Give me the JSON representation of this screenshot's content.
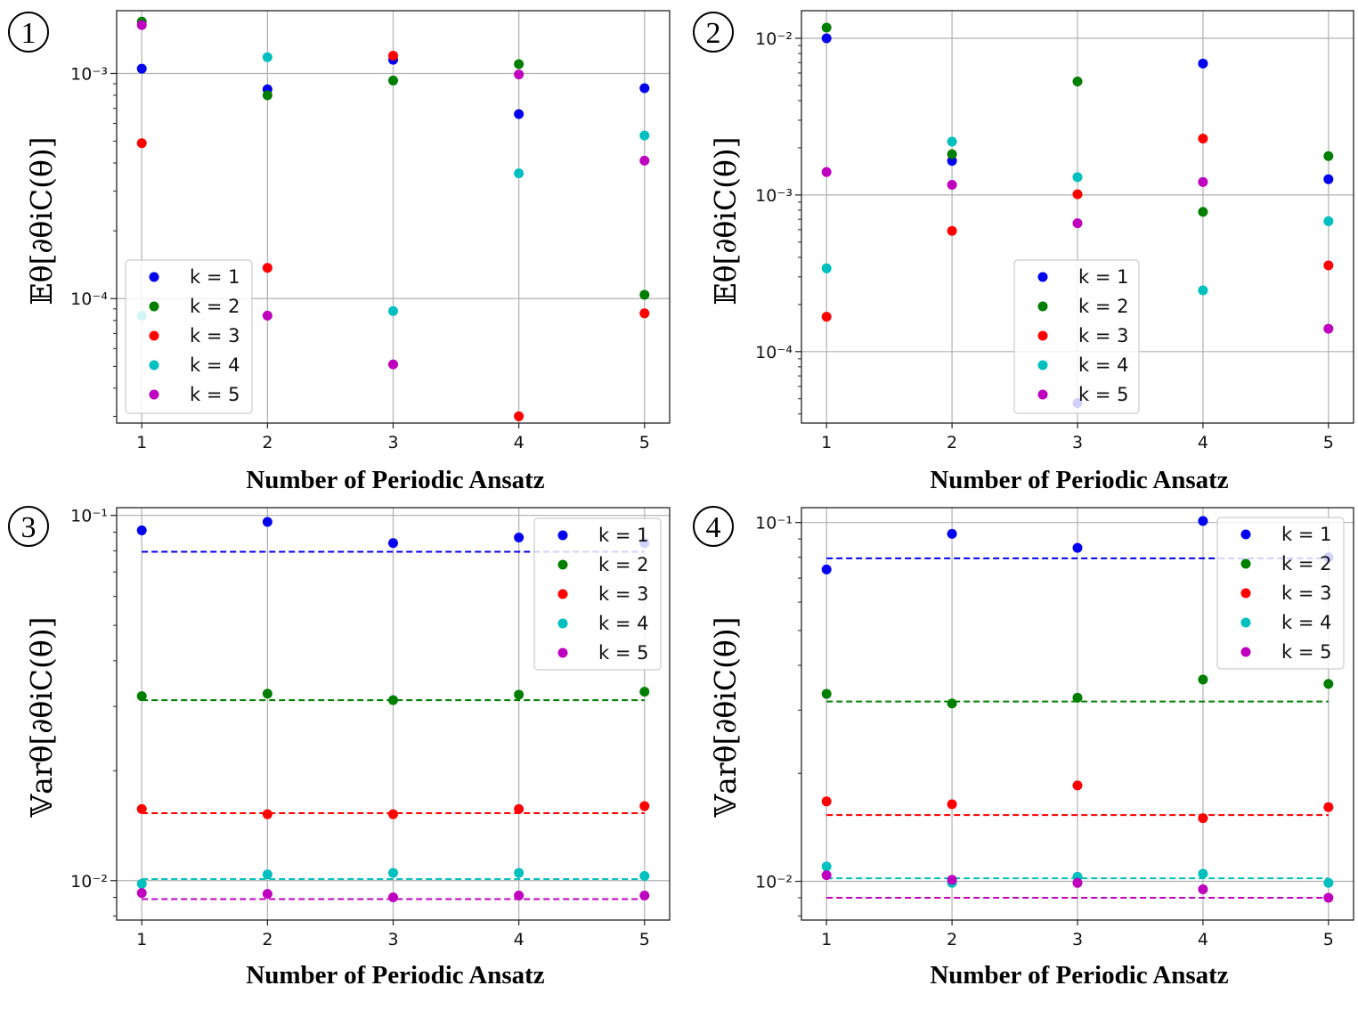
{
  "chart_data": [
    {
      "type": "scatter",
      "panel_label": "1",
      "xlabel": "Number of Periodic Ansatz",
      "ylabel": "𝔼θ[∂θiC(θ)]",
      "yscale": "log",
      "ylim": [
        2.8e-05,
        0.0019
      ],
      "xlim": [
        0.8,
        5.2
      ],
      "x": [
        1,
        2,
        3,
        4,
        5
      ],
      "xticks": [
        "1",
        "2",
        "3",
        "4",
        "5"
      ],
      "yticks": [
        {
          "value": 0.0001,
          "label": "10⁻⁴"
        },
        {
          "value": 0.001,
          "label": "10⁻³"
        }
      ],
      "grid": true,
      "legend_position": "lower-left",
      "series": [
        {
          "name": "k = 1",
          "color": "#0000ee",
          "values": [
            0.00105,
            0.00085,
            0.00115,
            0.00066,
            0.00086
          ],
          "baseline": null
        },
        {
          "name": "k = 2",
          "color": "#007f00",
          "values": [
            0.0017,
            0.0008,
            0.00093,
            0.0011,
            0.000104
          ],
          "baseline": null
        },
        {
          "name": "k = 3",
          "color": "#ff0000",
          "values": [
            0.00049,
            0.000137,
            0.0012,
            3e-05,
            8.6e-05
          ],
          "baseline": null
        },
        {
          "name": "k = 4",
          "color": "#00bfbf",
          "values": [
            8.4e-05,
            0.00118,
            8.8e-05,
            0.00036,
            0.00053
          ],
          "baseline": null
        },
        {
          "name": "k = 5",
          "color": "#bf00bf",
          "values": [
            0.00164,
            8.4e-05,
            5.1e-05,
            0.00099,
            0.00041
          ],
          "baseline": null
        }
      ]
    },
    {
      "type": "scatter",
      "panel_label": "2",
      "xlabel": "Number of Periodic Ansatz",
      "ylabel": "𝔼θ[∂θiC(θ)]",
      "yscale": "log",
      "ylim": [
        3.5e-05,
        0.015
      ],
      "xlim": [
        0.8,
        5.2
      ],
      "x": [
        1,
        2,
        3,
        4,
        5
      ],
      "xticks": [
        "1",
        "2",
        "3",
        "4",
        "5"
      ],
      "yticks": [
        {
          "value": 0.0001,
          "label": "10⁻⁴"
        },
        {
          "value": 0.001,
          "label": "10⁻³"
        },
        {
          "value": 0.01,
          "label": "10⁻²"
        }
      ],
      "grid": true,
      "legend_position": "lower-center",
      "series": [
        {
          "name": "k = 1",
          "color": "#0000ee",
          "values": [
            0.01,
            0.00165,
            4.7e-05,
            0.0069,
            0.00126
          ],
          "baseline": null
        },
        {
          "name": "k = 2",
          "color": "#007f00",
          "values": [
            0.0117,
            0.00182,
            0.0053,
            0.00078,
            0.00177
          ],
          "baseline": null
        },
        {
          "name": "k = 3",
          "color": "#ff0000",
          "values": [
            0.000167,
            0.00059,
            0.00101,
            0.00229,
            0.000355
          ],
          "baseline": null
        },
        {
          "name": "k = 4",
          "color": "#00bfbf",
          "values": [
            0.00034,
            0.00219,
            0.0013,
            0.000246,
            0.00068
          ],
          "baseline": null
        },
        {
          "name": "k = 5",
          "color": "#bf00bf",
          "values": [
            0.0014,
            0.00116,
            0.00066,
            0.00121,
            0.00014
          ],
          "baseline": null
        }
      ]
    },
    {
      "type": "scatter",
      "panel_label": "3",
      "xlabel": "Number of Periodic Ansatz",
      "ylabel": "𝕍arθ[∂θiC(θ)]",
      "yscale": "log",
      "ylim": [
        0.0078,
        0.105
      ],
      "xlim": [
        0.8,
        5.2
      ],
      "x": [
        1,
        2,
        3,
        4,
        5
      ],
      "xticks": [
        "1",
        "2",
        "3",
        "4",
        "5"
      ],
      "yticks": [
        {
          "value": 0.01,
          "label": "10⁻²"
        },
        {
          "value": 0.1,
          "label": "10⁻¹"
        }
      ],
      "grid": true,
      "legend_position": "upper-right",
      "series": [
        {
          "name": "k = 1",
          "color": "#0000ee",
          "values": [
            0.091,
            0.096,
            0.084,
            0.087,
            0.084
          ],
          "baseline": 0.0795
        },
        {
          "name": "k = 2",
          "color": "#007f00",
          "values": [
            0.032,
            0.0325,
            0.0312,
            0.0323,
            0.0329
          ],
          "baseline": 0.0312
        },
        {
          "name": "k = 3",
          "color": "#ff0000",
          "values": [
            0.0157,
            0.0152,
            0.0152,
            0.0157,
            0.016
          ],
          "baseline": 0.0153
        },
        {
          "name": "k = 4",
          "color": "#00bfbf",
          "values": [
            0.0098,
            0.0104,
            0.0105,
            0.0105,
            0.0103
          ],
          "baseline": 0.0101
        },
        {
          "name": "k = 5",
          "color": "#bf00bf",
          "values": [
            0.00925,
            0.0092,
            0.009,
            0.0091,
            0.0091
          ],
          "baseline": 0.0089
        }
      ]
    },
    {
      "type": "scatter",
      "panel_label": "4",
      "xlabel": "Number of Periodic Ansatz",
      "ylabel": "𝕍arθ[∂θiC(θ)]",
      "yscale": "log",
      "ylim": [
        0.0078,
        0.11
      ],
      "xlim": [
        0.8,
        5.2
      ],
      "x": [
        1,
        2,
        3,
        4,
        5
      ],
      "xticks": [
        "1",
        "2",
        "3",
        "4",
        "5"
      ],
      "yticks": [
        {
          "value": 0.01,
          "label": "10⁻²"
        },
        {
          "value": 0.1,
          "label": "10⁻¹"
        }
      ],
      "grid": true,
      "legend_position": "upper-right",
      "series": [
        {
          "name": "k = 1",
          "color": "#0000ee",
          "values": [
            0.074,
            0.093,
            0.085,
            0.101,
            0.08
          ],
          "baseline": 0.0795
        },
        {
          "name": "k = 2",
          "color": "#007f00",
          "values": [
            0.0333,
            0.0313,
            0.0325,
            0.0365,
            0.0355
          ],
          "baseline": 0.0317
        },
        {
          "name": "k = 3",
          "color": "#ff0000",
          "values": [
            0.0167,
            0.0164,
            0.0185,
            0.015,
            0.0161
          ],
          "baseline": 0.0153
        },
        {
          "name": "k = 4",
          "color": "#00bfbf",
          "values": [
            0.011,
            0.0099,
            0.0103,
            0.0105,
            0.0099
          ],
          "baseline": 0.0102
        },
        {
          "name": "k = 5",
          "color": "#bf00bf",
          "values": [
            0.0104,
            0.0101,
            0.0099,
            0.0095,
            0.009
          ],
          "baseline": 0.009
        }
      ]
    }
  ]
}
